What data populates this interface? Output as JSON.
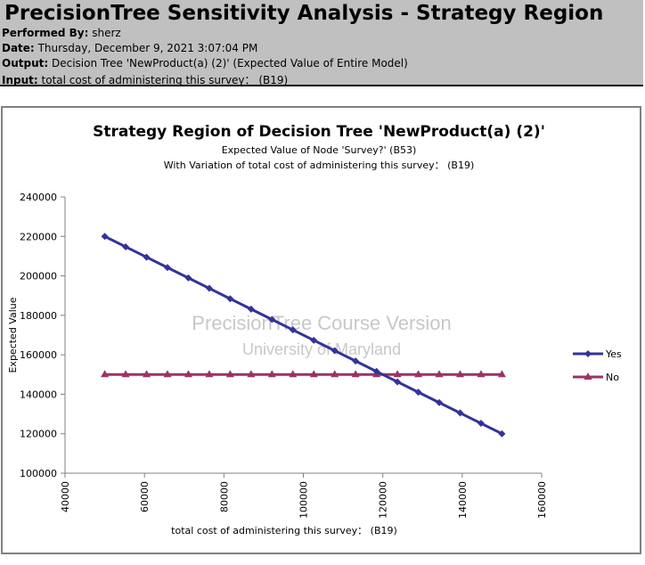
{
  "report": {
    "title": "PrecisionTree Sensitivity Analysis - Strategy Region",
    "performed_by_label": "Performed By:",
    "performed_by": "sherz",
    "date_label": "Date:",
    "date": "Thursday, December 9, 2021 3:07:04 PM",
    "output_label": "Output:",
    "output": "Decision Tree 'NewProduct(a) (2)' (Expected Value of Entire Model)",
    "input_label": "Input:",
    "input": "total cost of administering this survey：  (B19)"
  },
  "watermark": {
    "line1": "PrecisionTree Course Version",
    "line2": "University of Maryland"
  },
  "chart_data": {
    "type": "line",
    "title": "Strategy Region of Decision Tree 'NewProduct(a) (2)'",
    "subtitle1": "Expected Value of Node 'Survey?' (B53)",
    "subtitle2": "With Variation of total cost of administering this survey：  (B19)",
    "xlabel": "total cost of administering this survey：  (B19)",
    "ylabel": "Expected Value",
    "xlim": [
      40000,
      160000
    ],
    "ylim": [
      100000,
      240000
    ],
    "xticks": [
      40000,
      60000,
      80000,
      100000,
      120000,
      140000,
      160000
    ],
    "yticks": [
      100000,
      120000,
      140000,
      160000,
      180000,
      200000,
      220000,
      240000
    ],
    "legend_position": "right",
    "x": [
      50000,
      55263,
      60526,
      65789,
      71053,
      76316,
      81579,
      86842,
      92105,
      97368,
      102632,
      107895,
      113158,
      118421,
      123684,
      128947,
      134211,
      139474,
      144737,
      150000
    ],
    "series": [
      {
        "name": "Yes",
        "color": "#333399",
        "marker": "diamond",
        "values": [
          220000,
          214737,
          209474,
          204211,
          198947,
          193684,
          188421,
          183158,
          177895,
          172632,
          167368,
          162105,
          156842,
          151579,
          146316,
          141053,
          135789,
          130526,
          125263,
          120000
        ]
      },
      {
        "name": "No",
        "color": "#993366",
        "marker": "triangle",
        "values": [
          150000,
          150000,
          150000,
          150000,
          150000,
          150000,
          150000,
          150000,
          150000,
          150000,
          150000,
          150000,
          150000,
          150000,
          150000,
          150000,
          150000,
          150000,
          150000,
          150000
        ]
      }
    ]
  }
}
